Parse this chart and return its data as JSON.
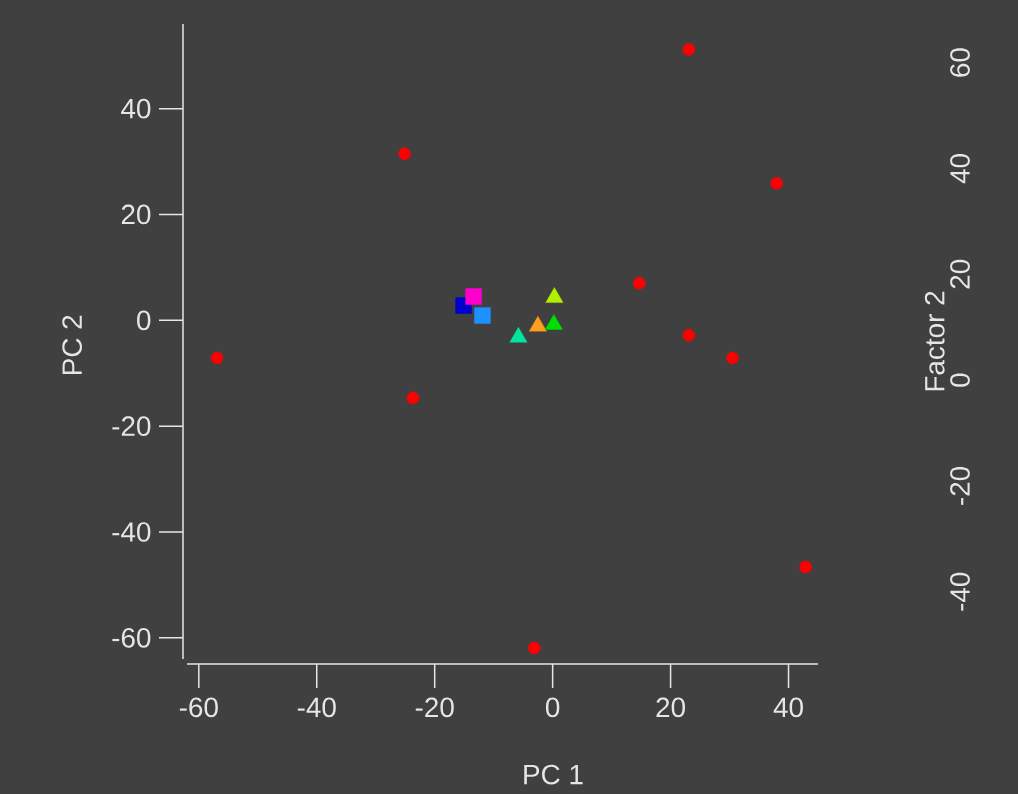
{
  "chart_data": {
    "type": "scatter",
    "xlabel": "PC 1",
    "ylabel": "PC 2",
    "y2label": "Factor 2",
    "xlim": [
      -62,
      45
    ],
    "ylim": [
      -64,
      56
    ],
    "y2lim": [
      -52.7,
      67.3
    ],
    "xticks": [
      -60,
      -40,
      -20,
      0,
      20,
      40
    ],
    "yticks": [
      -60,
      -40,
      -20,
      0,
      20,
      40
    ],
    "y2ticks": [
      -40,
      -20,
      0,
      20,
      40,
      60
    ],
    "series": [
      {
        "marker": "square",
        "colors": [
          "#0000cc",
          "#1e90ff",
          "#ff00cc"
        ],
        "x": [
          -15.1,
          -11.9,
          -13.4
        ],
        "values": [
          2.8,
          0.9,
          4.5
        ]
      },
      {
        "marker": "triangle",
        "colors": [
          "#00e5a0",
          "#ff9f20",
          "#00e000",
          "#b0f000"
        ],
        "x": [
          -5.8,
          -2.5,
          0.2,
          0.3
        ],
        "values": [
          -3.2,
          -1.1,
          -0.8,
          4.3
        ]
      },
      {
        "marker": "circle",
        "color": "#ff0000",
        "axis": "y2",
        "x": [
          -56.9,
          -25.1,
          -23.7,
          -3.1,
          14.7,
          23.1,
          23.1,
          30.5,
          38.0,
          42.9
        ],
        "values": [
          4.2,
          42.8,
          -3.4,
          -50.6,
          18.3,
          62.5,
          8.5,
          4.2,
          37.2,
          -35.3
        ]
      }
    ]
  }
}
